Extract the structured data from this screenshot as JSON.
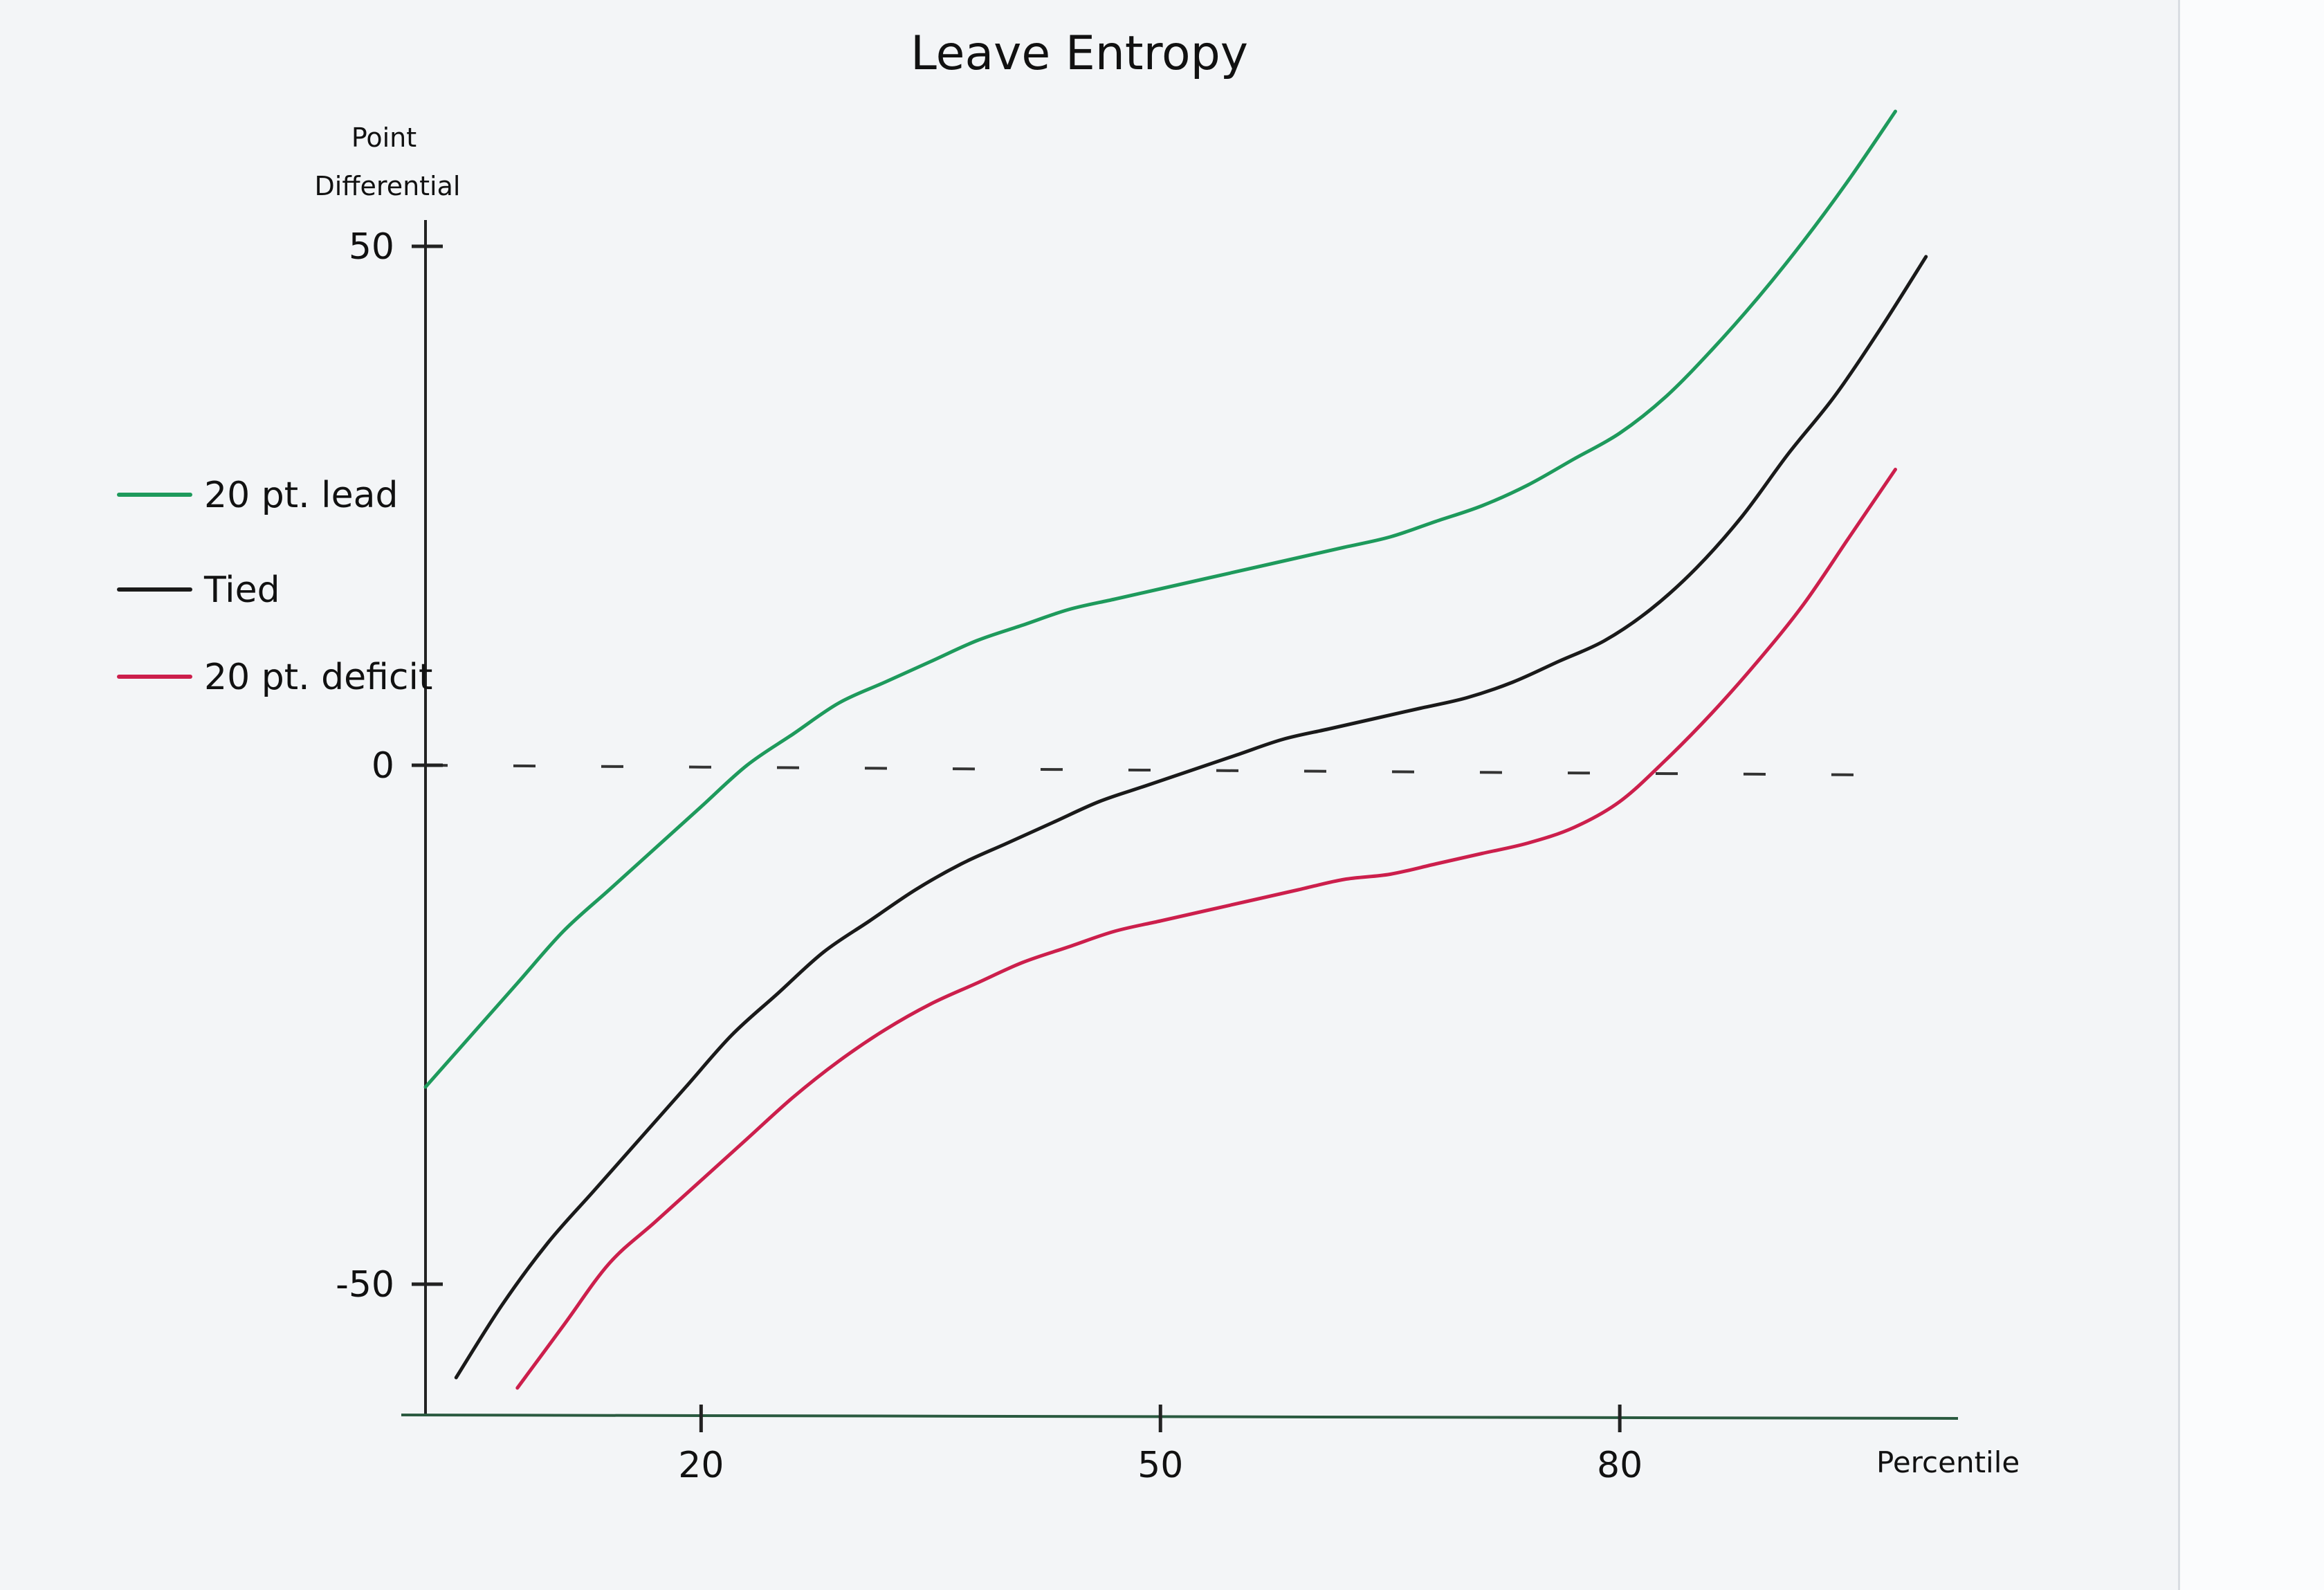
{
  "chart_data": {
    "type": "line",
    "title": "Leave Entropy",
    "xlabel": "Percentile",
    "ylabel": "Point Differential",
    "x_ticks": [
      20,
      50,
      80
    ],
    "y_ticks": [
      50,
      0,
      -50
    ],
    "xlim": [
      2,
      100
    ],
    "ylim": [
      -60,
      55
    ],
    "zero_line": "dashed",
    "grid": false,
    "legend": "left",
    "series": [
      {
        "name": "20 pt. lead",
        "color": "#1e9a5c",
        "x": [
          2,
          5,
          8,
          11,
          14,
          17,
          20,
          23,
          26,
          29,
          32,
          35,
          38,
          41,
          44,
          47,
          50,
          53,
          56,
          59,
          62,
          65,
          68,
          71,
          74,
          77,
          80,
          83,
          86,
          89,
          92,
          95,
          98
        ],
        "y": [
          -31,
          -26,
          -21,
          -16,
          -12,
          -8,
          -4,
          0,
          3,
          6,
          8,
          10,
          12,
          13.5,
          15,
          16,
          17,
          18,
          19,
          20,
          21,
          22,
          23.5,
          25,
          27,
          29.5,
          32,
          35.5,
          40,
          45,
          50.5,
          56.5,
          63
        ]
      },
      {
        "name": "Tied",
        "color": "#1a1a1a",
        "x": [
          4,
          7,
          10,
          13,
          16,
          19,
          22,
          25,
          28,
          31,
          34,
          37,
          40,
          43,
          46,
          49,
          52,
          55,
          58,
          61,
          64,
          67,
          70,
          73,
          76,
          79,
          82,
          85,
          88,
          91,
          94,
          97,
          100
        ],
        "y": [
          -59,
          -52,
          -46,
          -41,
          -36,
          -31,
          -26,
          -22,
          -18,
          -15,
          -12,
          -9.5,
          -7.5,
          -5.5,
          -3.5,
          -2,
          -0.5,
          1,
          2.5,
          3.5,
          4.5,
          5.5,
          6.5,
          8,
          10,
          12,
          15,
          19,
          24,
          30,
          35.5,
          42,
          49
        ]
      },
      {
        "name": "20 pt. deficit",
        "color": "#cc1f4c",
        "x": [
          8,
          11,
          14,
          17,
          20,
          23,
          26,
          29,
          32,
          35,
          38,
          41,
          44,
          47,
          50,
          53,
          56,
          59,
          62,
          65,
          68,
          71,
          74,
          77,
          80,
          83,
          86,
          89,
          92,
          95,
          98
        ],
        "y": [
          -60,
          -54,
          -48,
          -44,
          -40,
          -36,
          -32,
          -28.5,
          -25.5,
          -23,
          -21,
          -19,
          -17.5,
          -16,
          -15,
          -14,
          -13,
          -12,
          -11,
          -10.5,
          -9.5,
          -8.5,
          -7.5,
          -6,
          -3.5,
          0.5,
          5,
          10,
          15.5,
          22,
          28.5
        ]
      }
    ]
  }
}
